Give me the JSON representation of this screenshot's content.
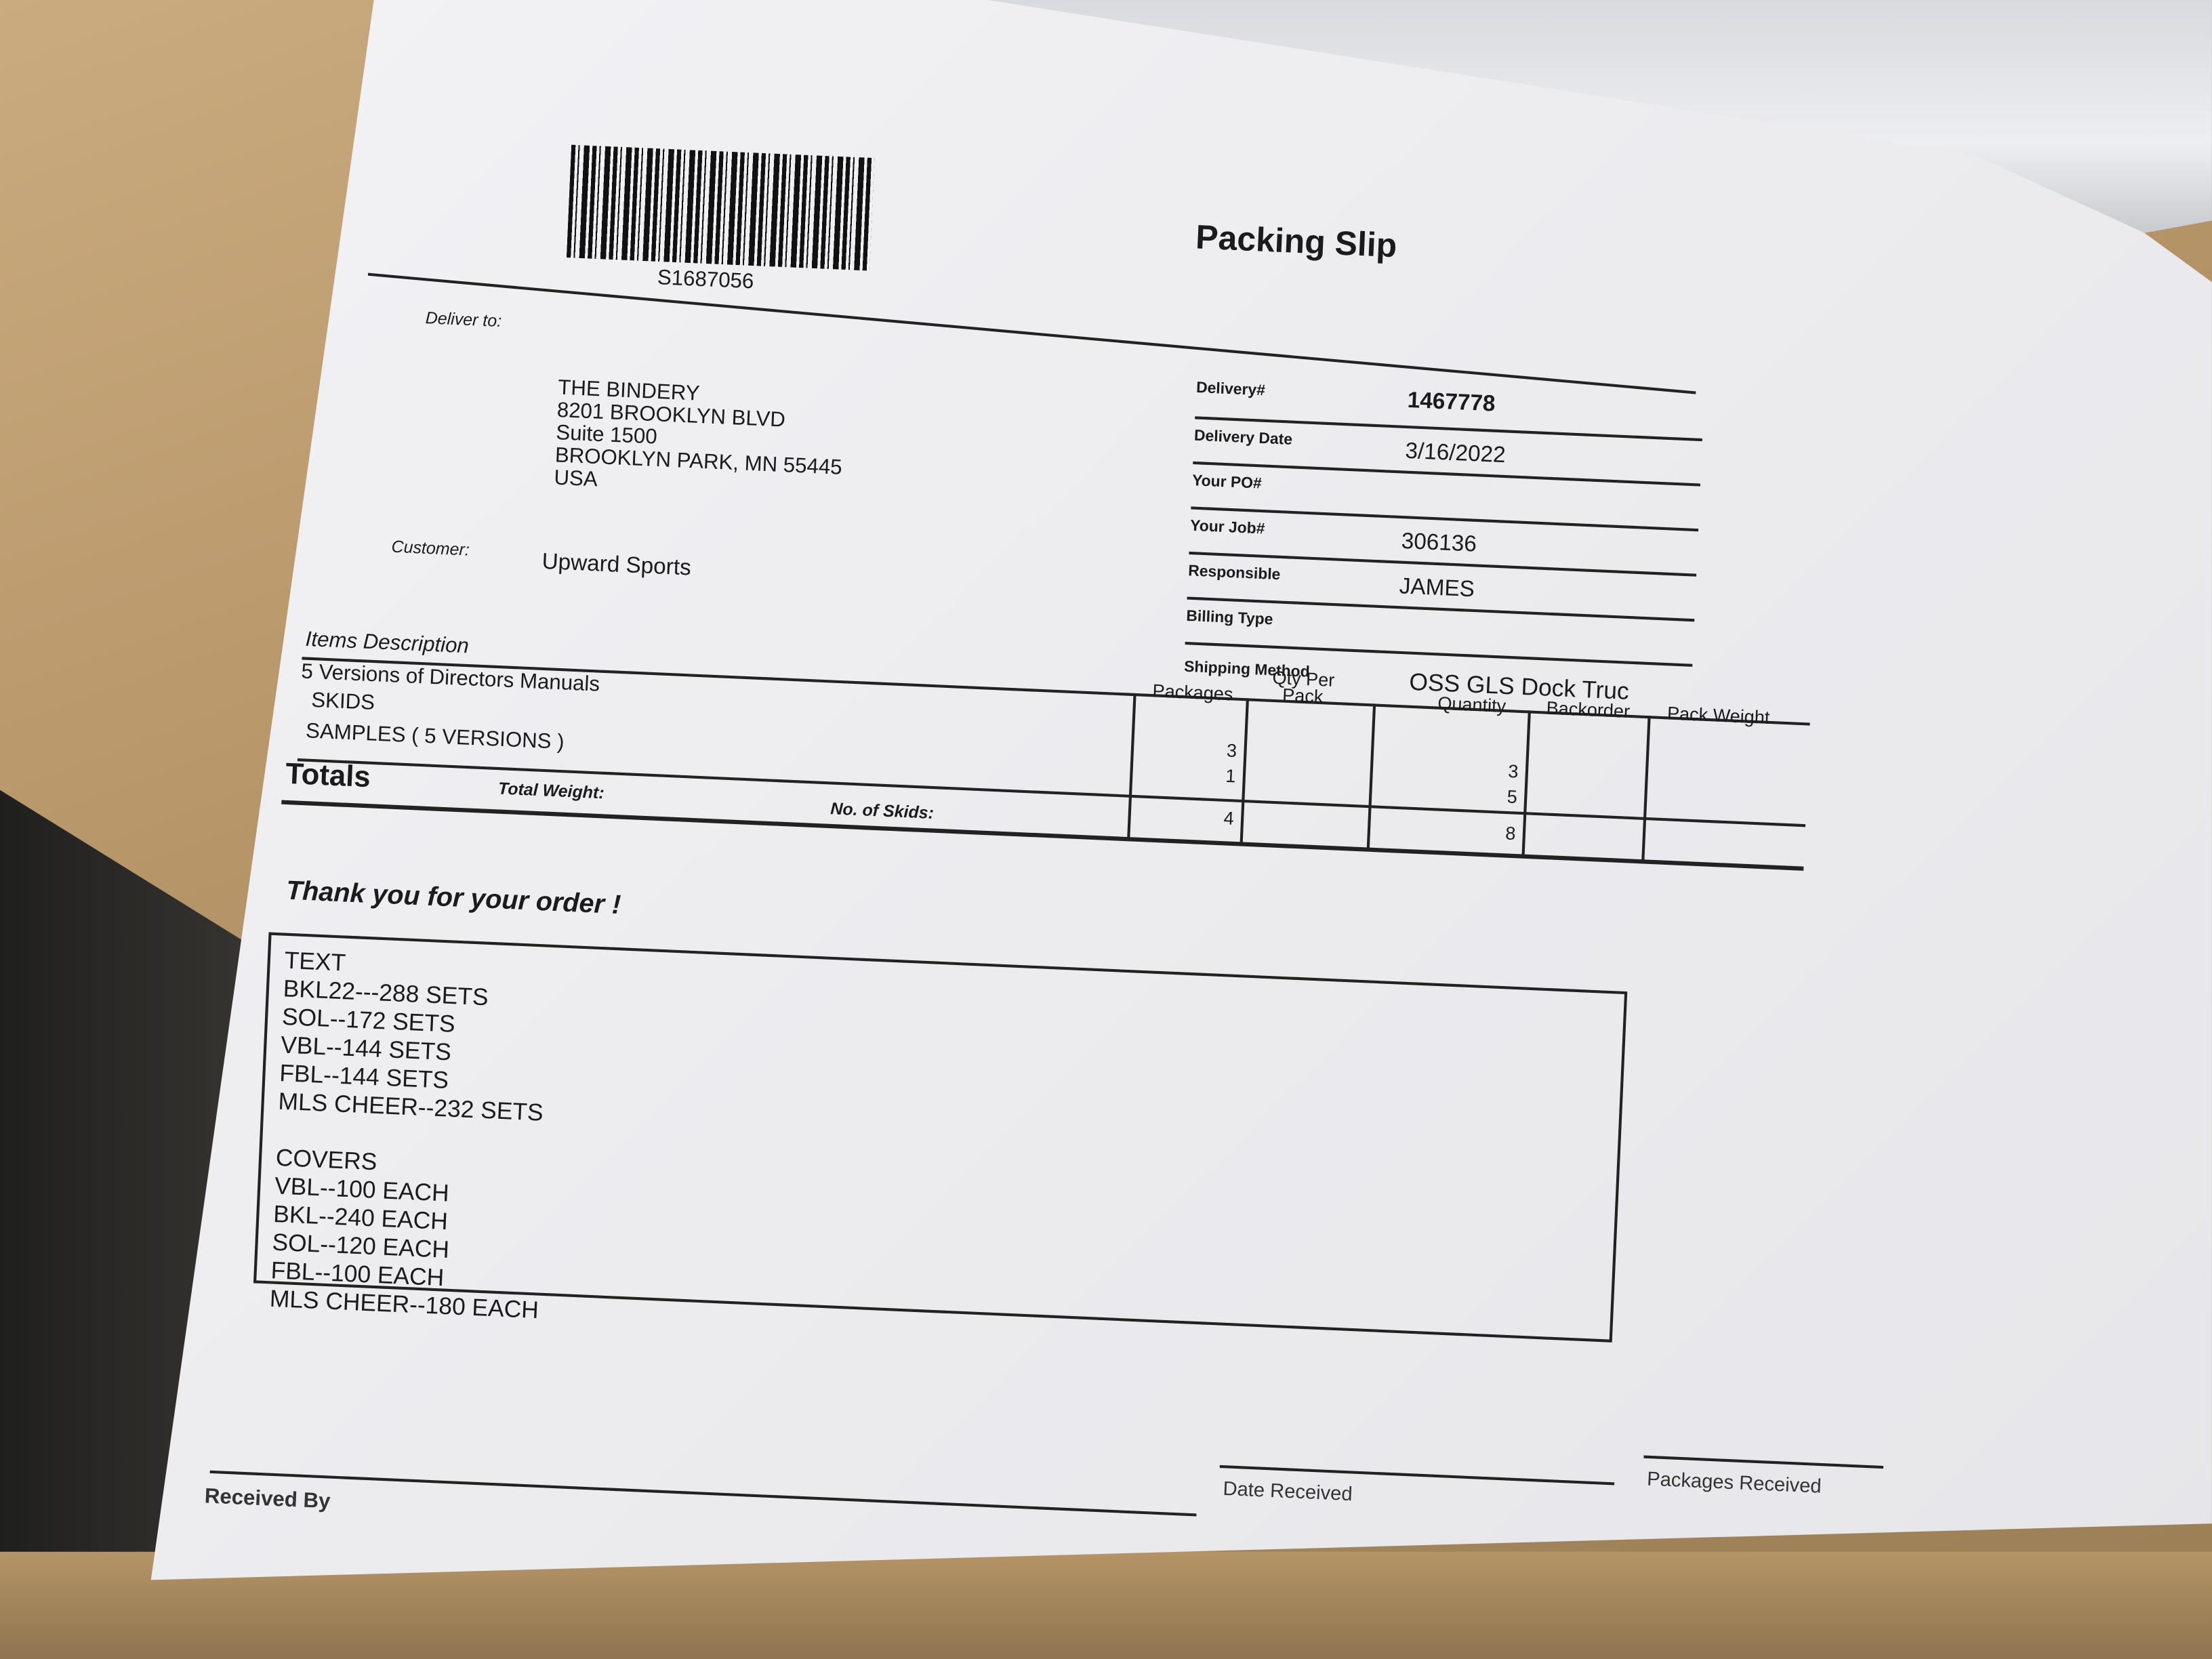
{
  "header": {
    "barcode_number": "S1687056",
    "title": "Packing Slip"
  },
  "deliver_to": {
    "label": "Deliver to:",
    "lines": [
      "THE BINDERY",
      "8201 BROOKLYN BLVD",
      "Suite 1500",
      "BROOKLYN PARK, MN 55445",
      "USA"
    ]
  },
  "customer": {
    "label": "Customer:",
    "value": "Upward Sports"
  },
  "fields": [
    {
      "label": "Delivery#",
      "value": "1467778"
    },
    {
      "label": "Delivery Date",
      "value": "3/16/2022"
    },
    {
      "label": "Your PO#",
      "value": ""
    },
    {
      "label": "Your Job#",
      "value": "306136"
    },
    {
      "label": "Responsible",
      "value": "JAMES"
    },
    {
      "label": "Billing Type",
      "value": ""
    },
    {
      "label": "Shipping Method",
      "value": "OSS GLS Dock Truc"
    }
  ],
  "items": {
    "header": "Items Description",
    "columns": [
      "Packages",
      "Qty  Per Pack",
      "Quantity",
      "Backorder",
      "Pack Weight"
    ],
    "description_title": "5 Versions of Directors Manuals",
    "rows": [
      {
        "description": "SKIDS",
        "packages": "3",
        "quantity": "3"
      },
      {
        "description": "SAMPLES ( 5 VERSIONS )",
        "packages": "1",
        "quantity": "5"
      }
    ],
    "totals": {
      "label": "Totals",
      "total_weight_label": "Total Weight:",
      "skids_label": "No. of Skids:",
      "packages": "4",
      "quantity": "8"
    }
  },
  "thank_you": "Thank you for your order !",
  "notes": "TEXT\nBKL22---288 SETS\nSOL--172 SETS\nVBL--144 SETS\nFBL--144 SETS\nMLS CHEER--232 SETS\n\nCOVERS\nVBL--100 EACH\nBKL--240 EACH\nSOL--120 EACH\nFBL--100 EACH\nMLS CHEER--180 EACH",
  "signatures": {
    "received_by": "Received By",
    "date_received": "Date Received",
    "packages_received": "Packages Received"
  }
}
